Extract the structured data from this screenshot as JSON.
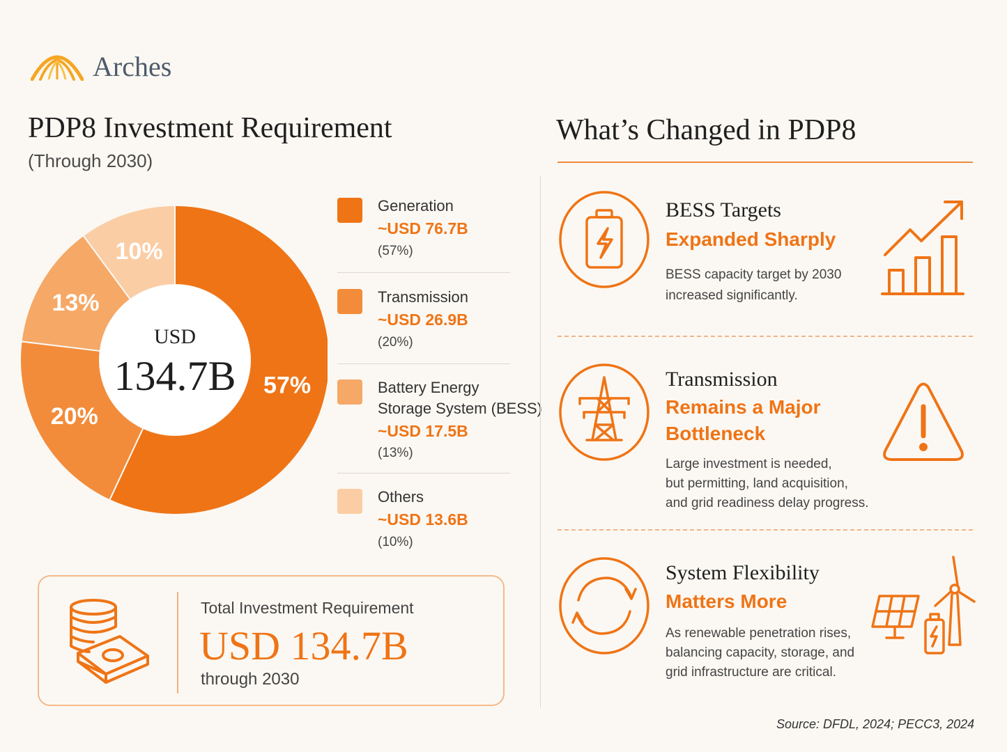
{
  "brand": {
    "name": "Arches",
    "logo_icon": "arch-logo-icon",
    "logo_color": "#f5a623"
  },
  "left": {
    "title": "PDP8 Investment Requirement",
    "subtitle": "(Through 2030)",
    "center_label": "USD",
    "center_value": "134.7B",
    "legend": [
      {
        "name_lines": [
          "Generation"
        ],
        "value": "~USD 76.7B",
        "pct": "(57%)",
        "color": "#ef7416"
      },
      {
        "name_lines": [
          "Transmission"
        ],
        "value": "~USD 26.9B",
        "pct": "(20%)",
        "color": "#f28c3a"
      },
      {
        "name_lines": [
          "Battery Energy",
          "Storage System (BESS)"
        ],
        "value": "~USD 17.5B",
        "pct": "(13%)",
        "color": "#f6a866"
      },
      {
        "name_lines": [
          "Others"
        ],
        "value": "~USD 13.6B",
        "pct": "(10%)",
        "color": "#fbcda4"
      }
    ],
    "total": {
      "label": "Total Investment Requirement",
      "value": "USD 134.7B",
      "note": "through 2030",
      "icon": "money-stack-icon"
    }
  },
  "chart_data": {
    "type": "pie",
    "categories": [
      "Generation",
      "Transmission",
      "Battery Energy Storage System (BESS)",
      "Others"
    ],
    "values": [
      76.7,
      26.9,
      17.5,
      13.6
    ],
    "percent_labels": [
      "57%",
      "20%",
      "13%",
      "10%"
    ],
    "colors": [
      "#ef7416",
      "#f28c3a",
      "#f6a866",
      "#fbcda4"
    ],
    "donut": true
  },
  "right": {
    "title": "What’s Changed in PDP8",
    "items": [
      {
        "icon": "battery-icon",
        "side_icon": "growth-bar-chart-icon",
        "title": "BESS Targets",
        "subtitle_lines": [
          "Expanded Sharply"
        ],
        "desc_lines": [
          "BESS capacity target by 2030",
          "increased significantly."
        ]
      },
      {
        "icon": "transmission-tower-icon",
        "side_icon": "warning-icon",
        "title": "Transmission",
        "subtitle_lines": [
          "Remains a Major",
          "Bottleneck"
        ],
        "desc_lines": [
          "Large investment is needed,",
          "but permitting, land acquisition,",
          "and grid readiness delay progress."
        ]
      },
      {
        "icon": "refresh-cycle-icon",
        "side_icon": "renewables-icon",
        "title": "System Flexibility",
        "subtitle_lines": [
          "Matters More"
        ],
        "desc_lines": [
          "As renewable penetration rises,",
          "balancing capacity, storage, and",
          "grid infrastructure are critical."
        ]
      }
    ]
  },
  "source": "Source: DFDL, 2024; PECC3, 2024"
}
